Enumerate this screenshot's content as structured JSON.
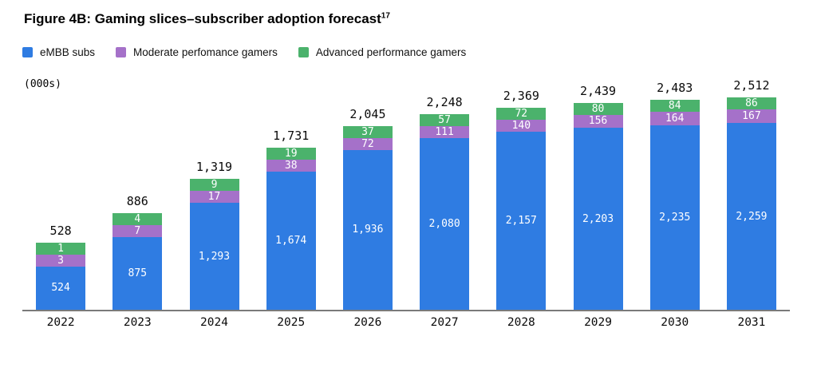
{
  "title": "Figure 4B: Gaming slices–subscriber adoption forecast",
  "title_superscript": "17",
  "units_label": "(000s)",
  "colors": {
    "embb": "#2F7CE2",
    "moderate": "#A571C9",
    "advanced": "#4BB26C",
    "axis": "#7a7a7a"
  },
  "legend": [
    {
      "label": "eMBB subs",
      "color": "#2F7CE2"
    },
    {
      "label": "Moderate perfomance gamers",
      "color": "#A571C9"
    },
    {
      "label": "Advanced performance gamers",
      "color": "#4BB26C"
    }
  ],
  "chart_data": {
    "type": "bar",
    "stacked": true,
    "title": "Figure 4B: Gaming slices–subscriber adoption forecast",
    "ylabel": "(000s)",
    "xlabel": "",
    "ylim": [
      0,
      2600
    ],
    "grid": false,
    "legend_position": "top",
    "categories": [
      "2022",
      "2023",
      "2024",
      "2025",
      "2026",
      "2027",
      "2028",
      "2029",
      "2030",
      "2031"
    ],
    "series": [
      {
        "name": "eMBB subs",
        "color": "#2F7CE2",
        "values": [
          524,
          875,
          1293,
          1674,
          1936,
          2080,
          2157,
          2203,
          2235,
          2259
        ]
      },
      {
        "name": "Moderate perfomance gamers",
        "color": "#A571C9",
        "values": [
          3,
          7,
          17,
          38,
          72,
          111,
          140,
          156,
          164,
          167
        ]
      },
      {
        "name": "Advanced performance gamers",
        "color": "#4BB26C",
        "values": [
          1,
          4,
          9,
          19,
          37,
          57,
          72,
          80,
          84,
          86
        ]
      }
    ],
    "totals": [
      528,
      886,
      1319,
      1731,
      2045,
      2248,
      2369,
      2439,
      2483,
      2512
    ]
  }
}
